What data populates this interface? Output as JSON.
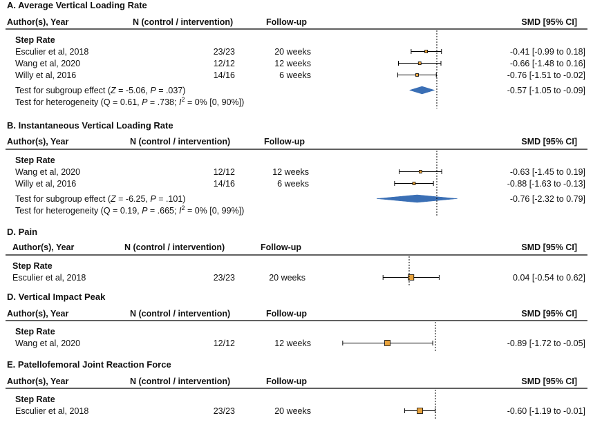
{
  "headers": {
    "author": "Author(s), Year",
    "n": "N (control / intervention)",
    "followup": "Follow-up",
    "smd": "SMD [95% CI]"
  },
  "colors": {
    "marker": "#e8a33d",
    "diamond": "#3a6fb5",
    "line": "#000000"
  },
  "chart_data": {
    "type": "forest",
    "reference_line": 0,
    "panels": [
      {
        "title": "A. Average Vertical Loading Rate",
        "group": "Step Rate",
        "studies": [
          {
            "author": "Esculier et al, 2018",
            "n": "23/23",
            "followup": "20 weeks",
            "smd": -0.41,
            "lo": -0.99,
            "hi": 0.18,
            "ci_text": "-0.41 [-0.99 to 0.18]"
          },
          {
            "author": "Wang et al, 2020",
            "n": "12/12",
            "followup": "12 weeks",
            "smd": -0.66,
            "lo": -1.48,
            "hi": 0.16,
            "ci_text": "-0.66 [-1.48 to 0.16]"
          },
          {
            "author": "Willy et al, 2016",
            "n": "14/16",
            "followup": "6 weeks",
            "smd": -0.76,
            "lo": -1.51,
            "hi": -0.02,
            "ci_text": "-0.76 [-1.51 to -0.02]"
          }
        ],
        "summary": {
          "smd": -0.57,
          "lo": -1.05,
          "hi": -0.09,
          "ci_text": "-0.57 [-1.05 to -0.09]"
        },
        "test_subgroup": {
          "pre": "Test for subgroup effect (",
          "z_sym": "Z",
          "mid": " = -5.06, ",
          "p_sym": "P",
          "post": " = .037)"
        },
        "test_het": {
          "pre": "Test for heterogeneity (Q = 0.61, ",
          "p_sym": "P",
          "mid": " = .738; ",
          "i_sym": "I",
          "sup": "2",
          "post": " = 0% [0, 90%])"
        }
      },
      {
        "title": "B. Instantaneous Vertical Loading Rate",
        "group": "Step Rate",
        "studies": [
          {
            "author": "Wang et al, 2020",
            "n": "12/12",
            "followup": "12 weeks",
            "smd": -0.63,
            "lo": -1.45,
            "hi": 0.19,
            "ci_text": "-0.63 [-1.45 to 0.19]"
          },
          {
            "author": "Willy et al, 2016",
            "n": "14/16",
            "followup": "6 weeks",
            "smd": -0.88,
            "lo": -1.63,
            "hi": -0.13,
            "ci_text": "-0.88 [-1.63 to -0.13]"
          }
        ],
        "summary": {
          "smd": -0.76,
          "lo": -2.32,
          "hi": 0.79,
          "ci_text": "-0.76 [-2.32 to 0.79]"
        },
        "test_subgroup": {
          "pre": "Test for subgroup effect (",
          "z_sym": "Z",
          "mid": " = -6.25, ",
          "p_sym": "P",
          "post": " = .101)"
        },
        "test_het": {
          "pre": "Test for heterogeneity (Q = 0.19, ",
          "p_sym": "P",
          "mid": " = .665; ",
          "i_sym": "I",
          "sup": "2",
          "post": " = 0% [0, 99%])"
        }
      },
      {
        "title": "D. Pain",
        "group": "Step Rate",
        "studies": [
          {
            "author": "Esculier et al, 2018",
            "n": "23/23",
            "followup": "20 weeks",
            "smd": 0.04,
            "lo": -0.54,
            "hi": 0.62,
            "ci_text": "0.04 [-0.54 to 0.62]"
          }
        ]
      },
      {
        "title": "D. Vertical Impact Peak",
        "group": "Step Rate",
        "studies": [
          {
            "author": "Wang et al, 2020",
            "n": "12/12",
            "followup": "12 weeks",
            "smd": -0.89,
            "lo": -1.72,
            "hi": -0.05,
            "ci_text": "-0.89 [-1.72 to -0.05]"
          }
        ]
      },
      {
        "title": "E. Patellofemoral Joint Reaction Force",
        "group": "Step Rate",
        "studies": [
          {
            "author": "Esculier et al, 2018",
            "n": "23/23",
            "followup": "20 weeks",
            "smd": -0.6,
            "lo": -1.19,
            "hi": -0.01,
            "ci_text": "-0.60 [-1.19 to -0.01]"
          }
        ]
      }
    ]
  }
}
